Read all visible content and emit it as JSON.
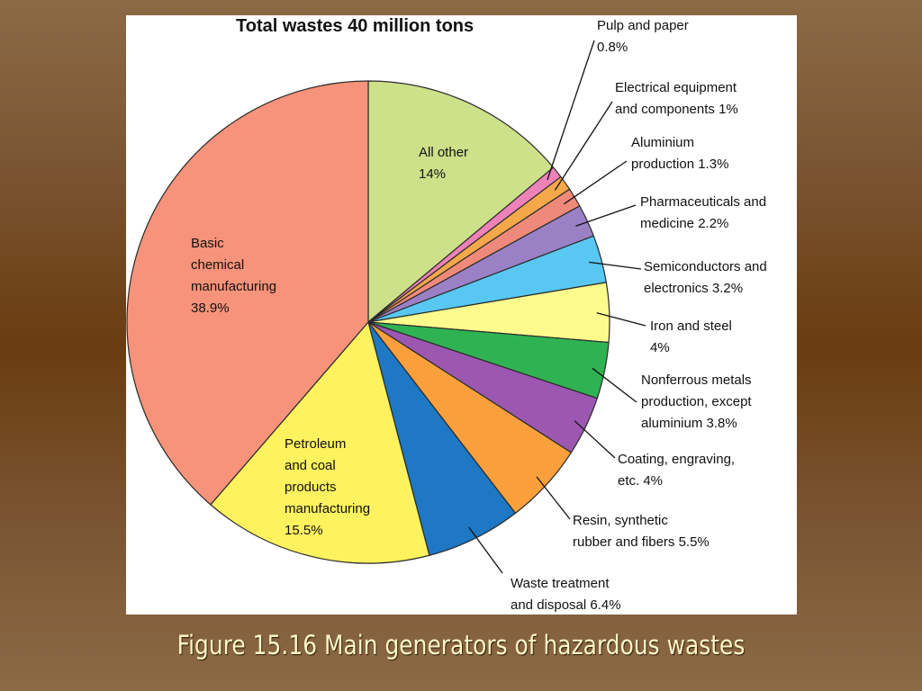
{
  "caption": "Figure 15.16  Main generators of hazardous wastes",
  "chart_data": {
    "type": "pie",
    "title": "Total wastes 40 million tons",
    "slices": [
      {
        "id": "all-other",
        "label": "All other 14%",
        "lines": [
          "All other",
          "14%"
        ],
        "value": 14,
        "color": "#cde08a"
      },
      {
        "id": "pulp-paper",
        "label": "Pulp and paper 0.8%",
        "lines": [
          "Pulp and paper",
          "0.8%"
        ],
        "value": 0.8,
        "color": "#ee82b8"
      },
      {
        "id": "electrical",
        "label": "Electrical equipment and components 1%",
        "lines": [
          "Electrical equipment",
          "and components 1%"
        ],
        "value": 1,
        "color": "#f5a84a"
      },
      {
        "id": "aluminium",
        "label": "Aluminium production 1.3%",
        "lines": [
          "Aluminium",
          "production 1.3%"
        ],
        "value": 1.3,
        "color": "#ef8a7a"
      },
      {
        "id": "pharma",
        "label": "Pharmaceuticals and medicine 2.2%",
        "lines": [
          "Pharmaceuticals and",
          "medicine 2.2%"
        ],
        "value": 2.2,
        "color": "#9a80c4"
      },
      {
        "id": "semiconductors",
        "label": "Semiconductors and electronics 3.2%",
        "lines": [
          "Semiconductors and",
          "electronics 3.2%"
        ],
        "value": 3.2,
        "color": "#58c8f2"
      },
      {
        "id": "iron-steel",
        "label": "Iron and steel 4%",
        "lines": [
          "Iron and steel",
          "4%"
        ],
        "value": 4,
        "color": "#fdfb8c"
      },
      {
        "id": "nonferrous",
        "label": "Nonferrous metals production, except aluminium 3.8%",
        "lines": [
          "Nonferrous metals",
          "production, except",
          "aluminium 3.8%"
        ],
        "value": 3.8,
        "color": "#2fb352"
      },
      {
        "id": "coating",
        "label": "Coating, engraving, etc. 4%",
        "lines": [
          "Coating, engraving,",
          "etc. 4%"
        ],
        "value": 4,
        "color": "#9c58b0"
      },
      {
        "id": "resin",
        "label": "Resin, synthetic rubber and fibers 5.5%",
        "lines": [
          "Resin, synthetic",
          "rubber and fibers 5.5%"
        ],
        "value": 5.5,
        "color": "#f9a03c"
      },
      {
        "id": "waste-treatment",
        "label": "Waste treatment and disposal 6.4%",
        "lines": [
          "Waste treatment",
          "and disposal 6.4%"
        ],
        "value": 6.4,
        "color": "#1e78c4"
      },
      {
        "id": "petroleum",
        "label": "Petroleum and coal products manufacturing 15.5%",
        "lines": [
          "Petroleum",
          "and coal",
          "products",
          "manufacturing",
          "15.5%"
        ],
        "value": 15.5,
        "color": "#fef25e"
      },
      {
        "id": "basic-chemical",
        "label": "Basic chemical manufacturing 38.9%",
        "lines": [
          "Basic",
          "chemical",
          "manufacturing",
          "38.9%"
        ],
        "value": 38.9,
        "color": "#f6937a"
      }
    ]
  }
}
